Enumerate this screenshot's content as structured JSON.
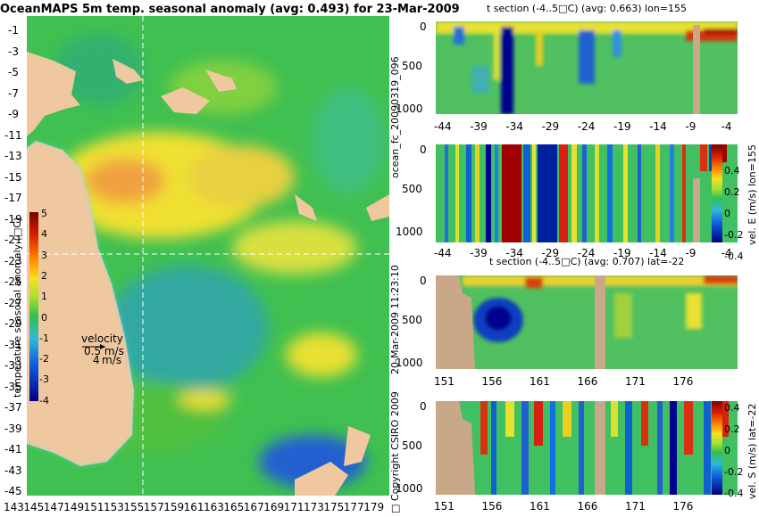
{
  "map": {
    "title": "OceanMAPS 5m temp. seasonal anomaly (avg: 0.493) for 23-Mar-2009",
    "colorbar_label": "temperature seasonal anomaly (□C)",
    "colorbar_ticks": [
      "5",
      "4",
      "3",
      "2",
      "1",
      "0",
      "-1",
      "-2",
      "-3",
      "-4"
    ],
    "lat_ticks": [
      "-1",
      "-3",
      "-5",
      "-7",
      "-9",
      "-11",
      "-13",
      "-15",
      "-17",
      "-19",
      "-21",
      "-23",
      "-25",
      "-27",
      "-29",
      "-31",
      "-33",
      "-35",
      "-37",
      "-39",
      "-41",
      "-43",
      "-45"
    ],
    "lon_ticks": [
      "143",
      "145",
      "147",
      "149",
      "151",
      "153",
      "155",
      "157",
      "159",
      "161",
      "163",
      "165",
      "167",
      "169",
      "171",
      "173",
      "175",
      "177",
      "179"
    ],
    "velocity_label": "velocity",
    "velocity_scale_1": "0.5 m/s",
    "velocity_scale_2": "4",
    "velocity_scale_3": "m/s"
  },
  "panels": {
    "p1_title": "t section (-4..5□C) (avg: 0.663) lon=155",
    "p1_xticks": [
      "-44",
      "-39",
      "-34",
      "-29",
      "-24",
      "-19",
      "-14",
      "-9",
      "-4"
    ],
    "p2_xticks": [
      "-44",
      "-39",
      "-34",
      "-29",
      "-24",
      "-19",
      "-14",
      "-9",
      "-4"
    ],
    "p3_title": "t section (-4..5□C) (avg: 0.707) lat=-22",
    "p3_xticks": [
      "151",
      "156",
      "161",
      "166",
      "171",
      "176"
    ],
    "p4_xticks": [
      "151",
      "156",
      "161",
      "166",
      "171",
      "176"
    ],
    "yticks": [
      "0",
      "500",
      "1000"
    ],
    "p2_cbar_ticks": [
      "0.4",
      "0.2",
      "0",
      "-0.2",
      "-0.4"
    ],
    "p2_cbar_label": "vel. E (m/s) lon=155",
    "p4_cbar_ticks": [
      "0.4",
      "0.2",
      "0",
      "-0.2",
      "-0.4"
    ],
    "p4_cbar_label": "vel. S (m/s) lat=-22"
  },
  "side_labels": {
    "file": "ocean_fc_20090319_096",
    "date": "20-Mar-2009 11:23:10",
    "copyright": "□ Copyright CSIRO 2009"
  },
  "chart_data": [
    {
      "type": "heatmap",
      "title": "OceanMAPS 5m temp. seasonal anomaly (avg: 0.493) for 23-Mar-2009",
      "xlim": [
        142,
        180
      ],
      "ylim": [
        -45,
        0
      ],
      "colorbar_range": [
        -4,
        5
      ],
      "avg": 0.493
    },
    {
      "type": "heatmap",
      "title": "t section (-4..5□C) (avg: 0.663) lon=155",
      "xlim": [
        -46,
        -1
      ],
      "ylim": [
        1050,
        0
      ],
      "avg": 0.663
    },
    {
      "type": "heatmap",
      "xlim": [
        -46,
        -1
      ],
      "ylim": [
        1050,
        0
      ],
      "colorbar_range": [
        -0.4,
        0.4
      ]
    },
    {
      "type": "heatmap",
      "title": "t section (-4..5□C) (avg: 0.707) lat=-22",
      "xlim": [
        149,
        180
      ],
      "ylim": [
        1050,
        0
      ],
      "avg": 0.707
    },
    {
      "type": "heatmap",
      "xlim": [
        149,
        180
      ],
      "ylim": [
        1050,
        0
      ],
      "colorbar_range": [
        -0.4,
        0.4
      ]
    }
  ]
}
